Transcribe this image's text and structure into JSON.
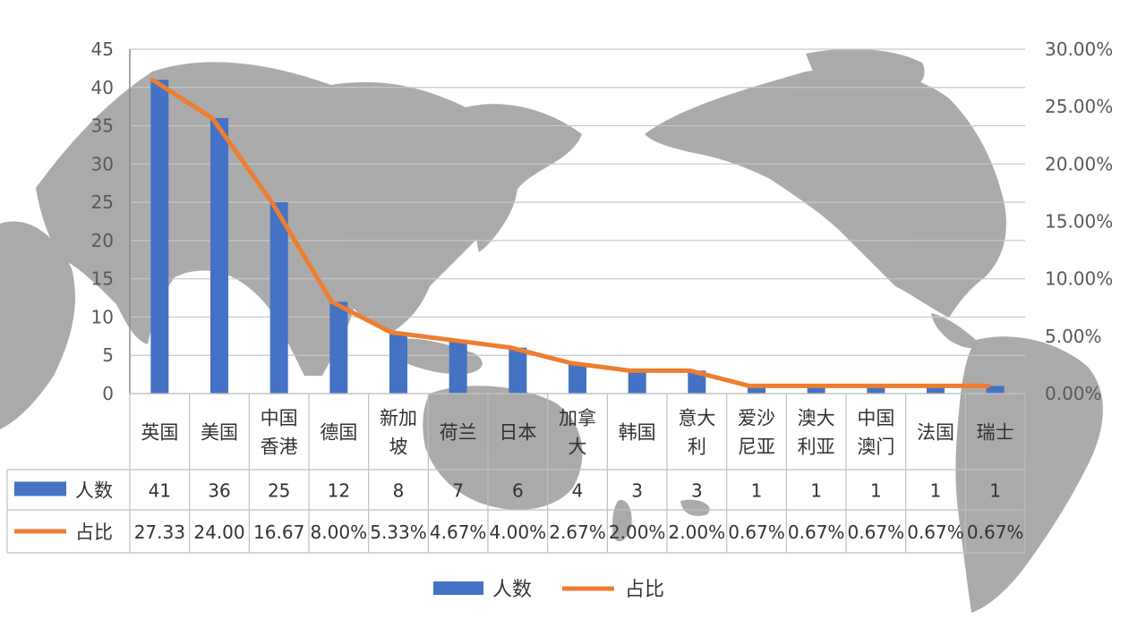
{
  "chart_data": {
    "type": "bar",
    "categories": [
      "英国",
      "美国",
      "中国\n香港",
      "德国",
      "新加\n坡",
      "荷兰",
      "日本",
      "加拿\n大",
      "韩国",
      "意大\n利",
      "爱沙\n尼亚",
      "澳大\n利亚",
      "中国\n澳门",
      "法国",
      "瑞士"
    ],
    "series": [
      {
        "name": "人数",
        "type": "bar",
        "axis": "left",
        "color": "#4472C4",
        "values": [
          41,
          36,
          25,
          12,
          8,
          7,
          6,
          4,
          3,
          3,
          1,
          1,
          1,
          1,
          1
        ],
        "table_labels": [
          "41",
          "36",
          "25",
          "12",
          "8",
          "7",
          "6",
          "4",
          "3",
          "3",
          "1",
          "1",
          "1",
          "1",
          "1"
        ]
      },
      {
        "name": "占比",
        "type": "line",
        "axis": "right",
        "color": "#ED7D31",
        "values": [
          27.33,
          24.0,
          16.67,
          8.0,
          5.33,
          4.67,
          4.0,
          2.67,
          2.0,
          2.0,
          0.67,
          0.67,
          0.67,
          0.67,
          0.67
        ],
        "table_labels": [
          "27.33",
          "24.00",
          "16.67",
          "8.00%",
          "5.33%",
          "4.67%",
          "4.00%",
          "2.67%",
          "2.00%",
          "2.00%",
          "0.67%",
          "0.67%",
          "0.67%",
          "0.67%",
          "0.67%"
        ]
      }
    ],
    "y_left": {
      "min": 0,
      "max": 45,
      "step": 5,
      "ticks": [
        "0",
        "5",
        "10",
        "15",
        "20",
        "25",
        "30",
        "35",
        "40",
        "45"
      ]
    },
    "y_right": {
      "min": 0,
      "max": 30,
      "step": 5,
      "ticks": [
        "0.00%",
        "5.00%",
        "10.00%",
        "15.00%",
        "20.00%",
        "25.00%",
        "30.00%"
      ]
    },
    "grid": true,
    "data_table": true,
    "legend": {
      "position": "bottom",
      "items": [
        "人数",
        "占比"
      ]
    },
    "background": "world map",
    "colors": {
      "grid": "#c8c8c8",
      "table_border": "#bfbfbf",
      "map": "#a6a6a6"
    }
  }
}
